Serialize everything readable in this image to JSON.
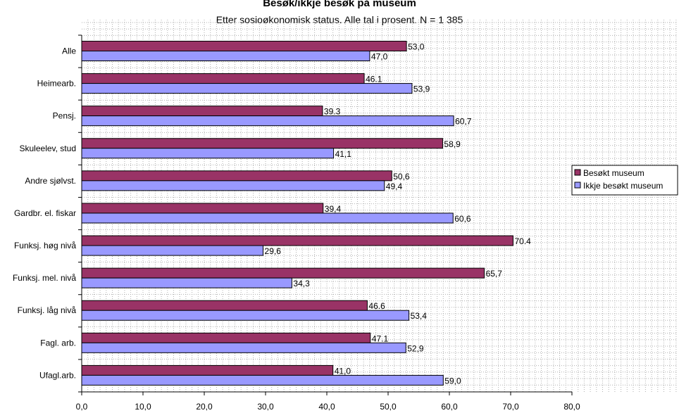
{
  "chart_data": {
    "type": "bar",
    "orientation": "horizontal",
    "title": "Besøk/ikkje besøk på museum",
    "subtitle": "Etter sosioøkonomisk status. Alle tal i prosent. N = 1 385",
    "categories": [
      "Alle",
      "Heimearb.",
      "Pensj.",
      "Skuleelev, stud",
      "Andre sjølvst.",
      "Gardbr. el. fiskar",
      "Funksj. høg nivå",
      "Funksj. mel. nivå",
      "Funksj. låg nivå",
      "Fagl. arb.",
      "Ufagl.arb."
    ],
    "series": [
      {
        "name": "Besøkt museum",
        "color": "#993366",
        "values": [
          53.0,
          46.1,
          39.3,
          58.9,
          50.6,
          39.4,
          70.4,
          65.7,
          46.6,
          47.1,
          41.0
        ],
        "labels": [
          "53,0",
          "46.1",
          "39.3",
          "58,9",
          "50,6",
          "39,4",
          "70.4",
          "65,7",
          "46.6",
          "47.1",
          "41,0"
        ]
      },
      {
        "name": "Ikkje besøkt museum",
        "color": "#9999ff",
        "values": [
          47.0,
          53.9,
          60.7,
          41.1,
          49.4,
          60.6,
          29.6,
          34.3,
          53.4,
          52.9,
          59.0
        ],
        "labels": [
          "47,0",
          "53,9",
          "60,7",
          "41,1",
          "49,4",
          "60,6",
          "29,6",
          "34,3",
          "53,4",
          "52,9",
          "59,0"
        ]
      }
    ],
    "xlim": [
      0,
      80
    ],
    "xticks": [
      0,
      10,
      20,
      30,
      40,
      50,
      60,
      70,
      80
    ],
    "xtick_labels": [
      "0,0",
      "10,0",
      "20,0",
      "30,0",
      "40,0",
      "50,0",
      "60,0",
      "70,0",
      "80,0"
    ],
    "grid": true,
    "legend_position": "right"
  }
}
